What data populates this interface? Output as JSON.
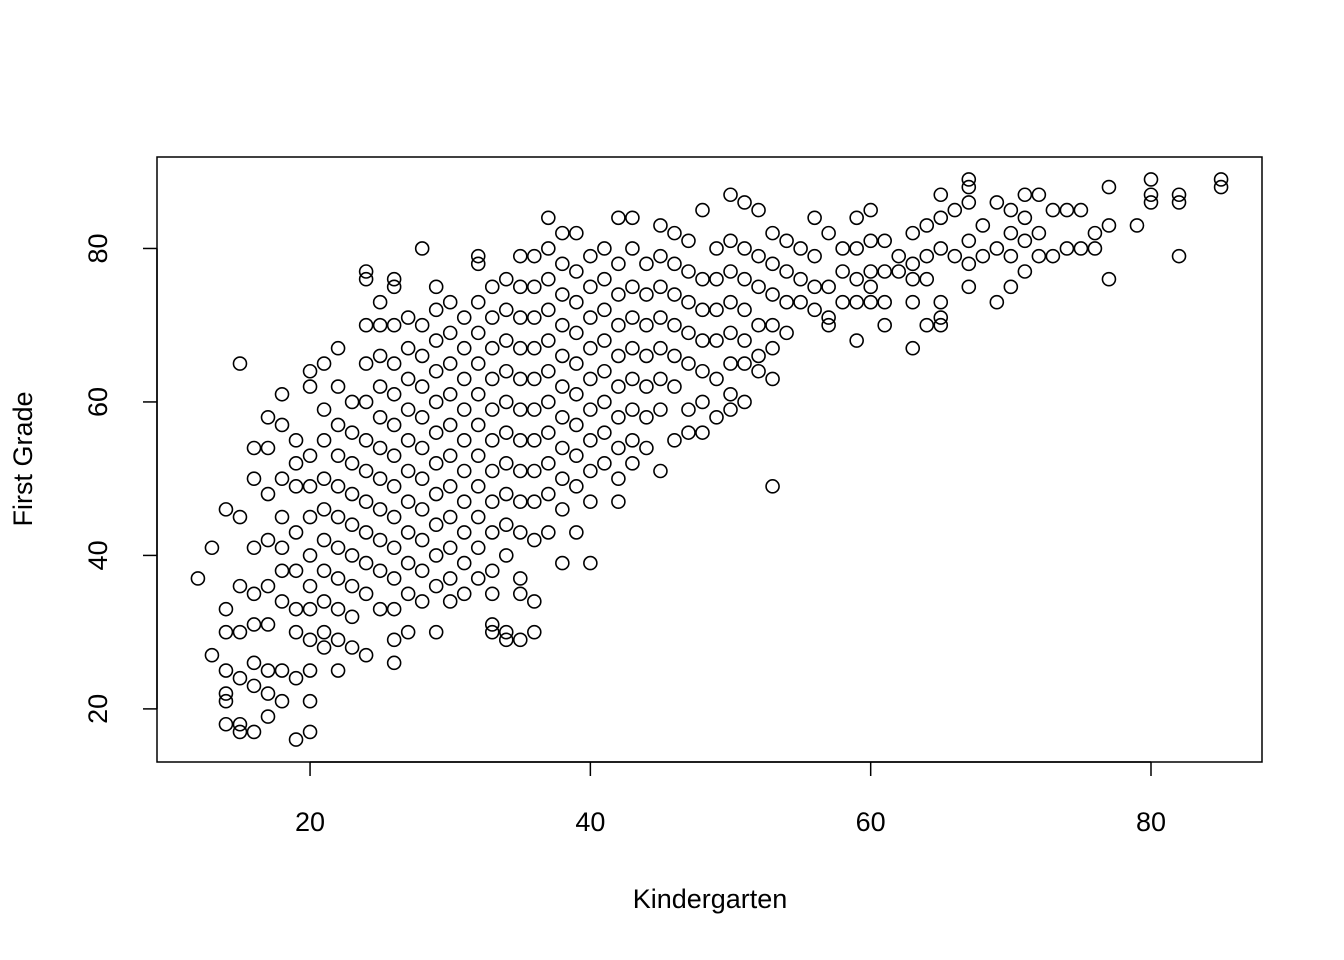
{
  "chart_data": {
    "type": "scatter",
    "x_label": "Kindergarten",
    "y_label": "First Grade",
    "color": "#000000",
    "xlim": [
      9.08,
      87.92
    ],
    "ylim": [
      13.08,
      91.92
    ],
    "xticks": [
      20,
      40,
      60,
      80
    ],
    "yticks": [
      20,
      40,
      60,
      80
    ],
    "x": [
      12,
      13,
      13,
      14,
      14,
      14,
      14,
      14,
      14,
      14,
      15,
      15,
      15,
      15,
      15,
      15,
      15,
      16,
      16,
      16,
      16,
      16,
      16,
      16,
      16,
      17,
      17,
      17,
      17,
      17,
      17,
      17,
      17,
      17,
      18,
      18,
      18,
      18,
      18,
      18,
      18,
      18,
      18,
      19,
      19,
      19,
      19,
      19,
      19,
      19,
      19,
      19,
      20,
      20,
      20,
      20,
      20,
      20,
      20,
      20,
      20,
      20,
      20,
      20,
      21,
      21,
      21,
      21,
      21,
      21,
      21,
      21,
      21,
      21,
      22,
      22,
      22,
      22,
      22,
      22,
      22,
      22,
      22,
      22,
      22,
      23,
      23,
      23,
      23,
      23,
      23,
      23,
      23,
      23,
      24,
      24,
      24,
      24,
      24,
      24,
      24,
      24,
      24,
      24,
      24,
      24,
      25,
      25,
      25,
      25,
      25,
      25,
      25,
      25,
      25,
      25,
      25,
      26,
      26,
      26,
      26,
      26,
      26,
      26,
      26,
      26,
      26,
      26,
      26,
      26,
      26,
      27,
      27,
      27,
      27,
      27,
      27,
      27,
      27,
      27,
      27,
      27,
      28,
      28,
      28,
      28,
      28,
      28,
      28,
      28,
      28,
      28,
      28,
      29,
      29,
      29,
      29,
      29,
      29,
      29,
      29,
      29,
      29,
      29,
      29,
      30,
      30,
      30,
      30,
      30,
      30,
      30,
      30,
      30,
      30,
      30,
      31,
      31,
      31,
      31,
      31,
      31,
      31,
      31,
      31,
      31,
      32,
      32,
      32,
      32,
      32,
      32,
      32,
      32,
      32,
      32,
      32,
      32,
      33,
      33,
      33,
      33,
      33,
      33,
      33,
      33,
      33,
      33,
      33,
      33,
      33,
      34,
      34,
      34,
      34,
      34,
      34,
      34,
      34,
      34,
      34,
      34,
      34,
      35,
      35,
      35,
      35,
      35,
      35,
      35,
      35,
      35,
      35,
      35,
      35,
      35,
      36,
      36,
      36,
      36,
      36,
      36,
      36,
      36,
      36,
      36,
      36,
      36,
      37,
      37,
      37,
      37,
      37,
      37,
      37,
      37,
      37,
      37,
      37,
      38,
      38,
      38,
      38,
      38,
      38,
      38,
      38,
      38,
      38,
      38,
      39,
      39,
      39,
      39,
      39,
      39,
      39,
      39,
      39,
      39,
      40,
      40,
      40,
      40,
      40,
      40,
      40,
      40,
      40,
      40,
      41,
      41,
      41,
      41,
      41,
      41,
      41,
      41,
      42,
      42,
      42,
      42,
      42,
      42,
      42,
      42,
      42,
      42,
      43,
      43,
      43,
      43,
      43,
      43,
      43,
      43,
      43,
      44,
      44,
      44,
      44,
      44,
      44,
      44,
      45,
      45,
      45,
      45,
      45,
      45,
      45,
      45,
      46,
      46,
      46,
      46,
      46,
      46,
      46,
      47,
      47,
      47,
      47,
      47,
      47,
      47,
      48,
      48,
      48,
      48,
      48,
      48,
      48,
      49,
      49,
      49,
      49,
      49,
      49,
      50,
      50,
      50,
      50,
      50,
      50,
      50,
      50,
      51,
      51,
      51,
      51,
      51,
      51,
      51,
      52,
      52,
      52,
      52,
      52,
      52,
      53,
      53,
      53,
      53,
      53,
      53,
      53,
      54,
      54,
      54,
      54,
      55,
      55,
      55,
      56,
      56,
      56,
      56,
      57,
      57,
      57,
      57,
      58,
      58,
      58,
      59,
      59,
      59,
      59,
      59,
      60,
      60,
      60,
      60,
      60,
      61,
      61,
      61,
      61,
      62,
      62,
      63,
      63,
      63,
      63,
      63,
      64,
      64,
      64,
      64,
      65,
      65,
      65,
      65,
      65,
      65,
      66,
      66,
      67,
      67,
      67,
      67,
      67,
      67,
      68,
      68,
      69,
      69,
      69,
      70,
      70,
      70,
      70,
      71,
      71,
      71,
      71,
      72,
      72,
      72,
      73,
      73,
      74,
      74,
      75,
      75,
      76,
      76,
      77,
      77,
      77,
      79,
      80,
      80,
      80,
      82,
      82,
      82,
      85,
      85
    ],
    "values": [
      37,
      41,
      27,
      46,
      33,
      30,
      25,
      22,
      21,
      18,
      65,
      45,
      36,
      30,
      24,
      18,
      17,
      54,
      50,
      41,
      35,
      31,
      26,
      23,
      17,
      58,
      54,
      48,
      42,
      36,
      31,
      25,
      22,
      19,
      61,
      57,
      50,
      45,
      41,
      38,
      34,
      25,
      21,
      55,
      52,
      49,
      43,
      38,
      33,
      30,
      24,
      16,
      64,
      62,
      53,
      49,
      45,
      40,
      36,
      33,
      29,
      25,
      21,
      17,
      65,
      59,
      55,
      50,
      46,
      42,
      38,
      34,
      30,
      28,
      67,
      62,
      57,
      53,
      49,
      45,
      41,
      37,
      33,
      29,
      25,
      60,
      56,
      52,
      48,
      44,
      40,
      36,
      32,
      28,
      77,
      76,
      70,
      65,
      60,
      55,
      51,
      47,
      43,
      39,
      35,
      27,
      73,
      70,
      66,
      62,
      58,
      54,
      50,
      46,
      42,
      38,
      33,
      76,
      75,
      70,
      65,
      61,
      57,
      53,
      49,
      45,
      41,
      37,
      33,
      29,
      26,
      71,
      67,
      63,
      59,
      55,
      51,
      47,
      43,
      39,
      35,
      30,
      80,
      70,
      66,
      62,
      58,
      54,
      50,
      46,
      42,
      38,
      34,
      75,
      72,
      68,
      64,
      60,
      56,
      52,
      48,
      44,
      40,
      36,
      30,
      73,
      69,
      65,
      61,
      57,
      53,
      49,
      45,
      41,
      37,
      34,
      71,
      67,
      63,
      59,
      55,
      51,
      47,
      43,
      39,
      35,
      79,
      78,
      73,
      69,
      65,
      61,
      57,
      53,
      49,
      45,
      41,
      37,
      75,
      71,
      67,
      63,
      59,
      55,
      51,
      47,
      43,
      38,
      35,
      31,
      30,
      76,
      72,
      68,
      64,
      60,
      56,
      52,
      48,
      44,
      40,
      30,
      29,
      79,
      75,
      71,
      67,
      63,
      59,
      55,
      51,
      47,
      43,
      37,
      35,
      29,
      79,
      75,
      71,
      67,
      63,
      59,
      55,
      51,
      47,
      42,
      34,
      30,
      84,
      80,
      76,
      72,
      68,
      64,
      60,
      56,
      52,
      48,
      43,
      82,
      78,
      74,
      70,
      66,
      62,
      58,
      54,
      50,
      46,
      39,
      82,
      77,
      73,
      69,
      65,
      61,
      57,
      53,
      49,
      43,
      79,
      75,
      71,
      67,
      63,
      59,
      55,
      51,
      47,
      39,
      80,
      76,
      72,
      68,
      64,
      60,
      56,
      52,
      84,
      78,
      74,
      70,
      66,
      62,
      58,
      54,
      50,
      47,
      84,
      80,
      75,
      71,
      67,
      63,
      59,
      55,
      52,
      78,
      74,
      70,
      66,
      62,
      58,
      54,
      83,
      79,
      75,
      71,
      67,
      63,
      59,
      51,
      82,
      78,
      74,
      70,
      66,
      62,
      55,
      81,
      77,
      73,
      69,
      65,
      59,
      56,
      85,
      76,
      72,
      68,
      64,
      60,
      56,
      80,
      76,
      72,
      68,
      63,
      58,
      87,
      81,
      77,
      73,
      69,
      65,
      61,
      59,
      86,
      80,
      76,
      72,
      68,
      65,
      60,
      85,
      79,
      75,
      70,
      66,
      64,
      82,
      78,
      74,
      70,
      67,
      63,
      49,
      81,
      77,
      73,
      69,
      80,
      76,
      73,
      84,
      79,
      75,
      72,
      82,
      75,
      71,
      70,
      80,
      77,
      73,
      84,
      80,
      76,
      73,
      68,
      85,
      81,
      77,
      75,
      73,
      81,
      77,
      73,
      70,
      79,
      77,
      82,
      78,
      76,
      73,
      67,
      83,
      79,
      76,
      70,
      87,
      84,
      80,
      73,
      71,
      70,
      85,
      79,
      89,
      88,
      86,
      81,
      78,
      75,
      83,
      79,
      86,
      80,
      73,
      85,
      82,
      79,
      75,
      87,
      84,
      81,
      77,
      87,
      82,
      79,
      85,
      79,
      85,
      80,
      85,
      80,
      82,
      80,
      88,
      83,
      76,
      83,
      89,
      87,
      86,
      87,
      86,
      79,
      89,
      88
    ]
  }
}
